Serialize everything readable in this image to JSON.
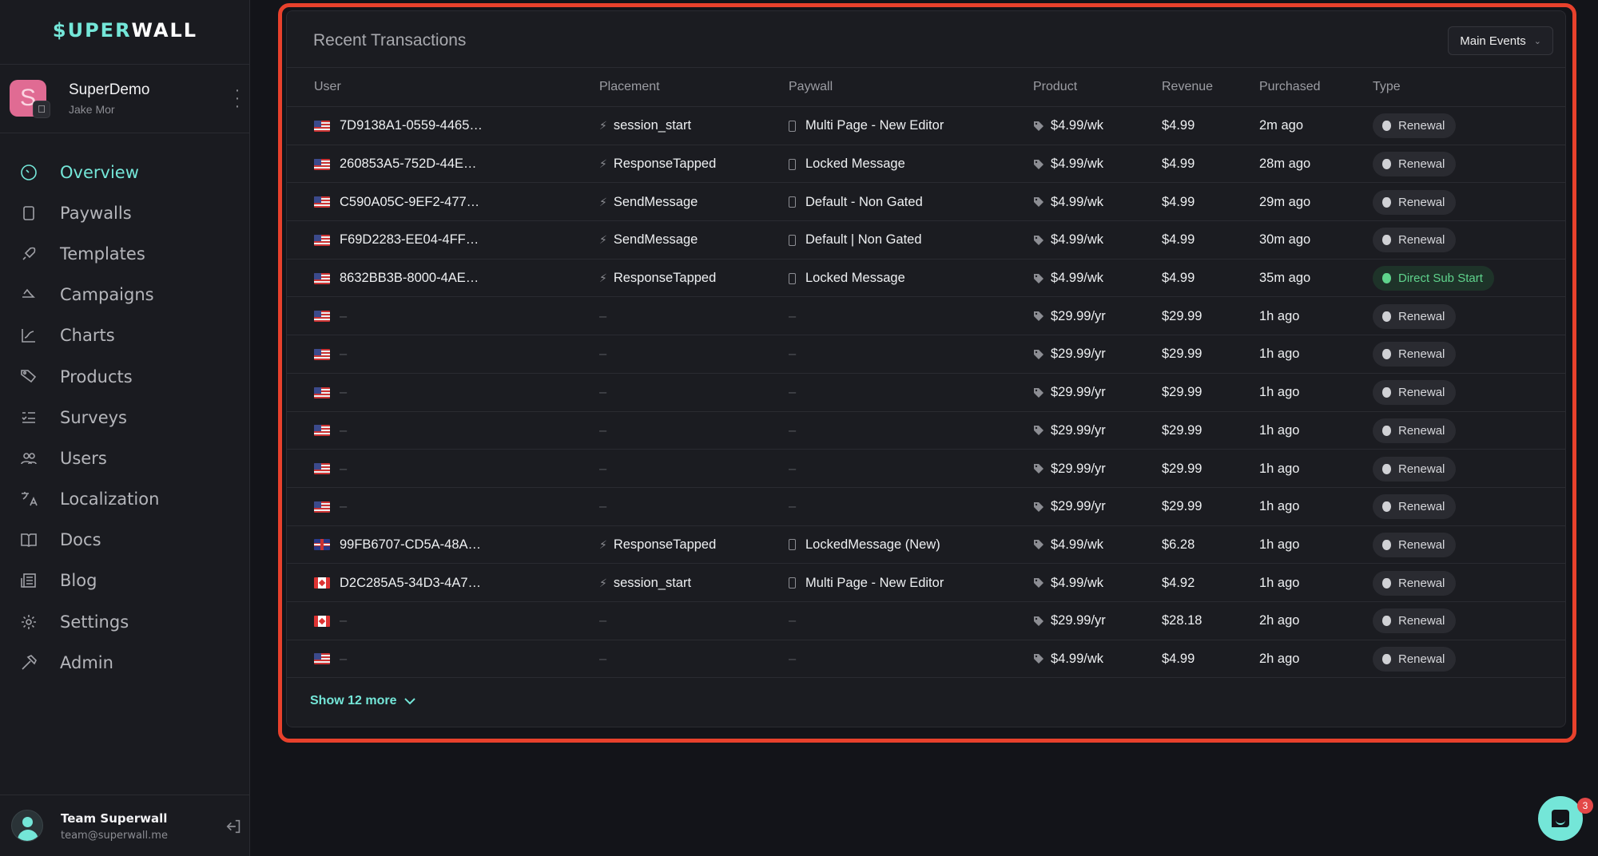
{
  "brand": {
    "logo_part1": "$UPER",
    "logo_part2": "WALL",
    "accent": "#74e6d8",
    "highlight": "#e8412c"
  },
  "app": {
    "name": "SuperDemo",
    "user": "Jake Mor",
    "icon_letter": "S",
    "platform_icon": "apple-icon"
  },
  "nav": {
    "items": [
      {
        "label": "Overview",
        "icon": "dashboard-icon",
        "active": true
      },
      {
        "label": "Paywalls",
        "icon": "phone-icon"
      },
      {
        "label": "Templates",
        "icon": "rocket-icon"
      },
      {
        "label": "Campaigns",
        "icon": "campaign-icon"
      },
      {
        "label": "Charts",
        "icon": "chart-icon"
      },
      {
        "label": "Products",
        "icon": "tag-icon"
      },
      {
        "label": "Surveys",
        "icon": "checklist-icon"
      },
      {
        "label": "Users",
        "icon": "users-icon"
      },
      {
        "label": "Localization",
        "icon": "translate-icon"
      },
      {
        "label": "Docs",
        "icon": "book-icon"
      },
      {
        "label": "Blog",
        "icon": "newspaper-icon"
      },
      {
        "label": "Settings",
        "icon": "gear-icon"
      },
      {
        "label": "Admin",
        "icon": "hammer-icon"
      }
    ]
  },
  "footer": {
    "team": "Team Superwall",
    "email": "team@superwall.me"
  },
  "transactions": {
    "title": "Recent Transactions",
    "filter": "Main Events",
    "columns": [
      "User",
      "Placement",
      "Paywall",
      "Product",
      "Revenue",
      "Purchased",
      "Type"
    ],
    "rows": [
      {
        "flag": "us",
        "user": "7D9138A1-0559-4465…",
        "placement": "session_start",
        "paywall": "Multi Page - New Editor",
        "product": "$4.99/wk",
        "revenue": "$4.99",
        "purchased": "2m ago",
        "type": "Renewal"
      },
      {
        "flag": "us",
        "user": "260853A5-752D-44E…",
        "placement": "ResponseTapped",
        "paywall": "Locked Message",
        "product": "$4.99/wk",
        "revenue": "$4.99",
        "purchased": "28m ago",
        "type": "Renewal"
      },
      {
        "flag": "us",
        "user": "C590A05C-9EF2-477…",
        "placement": "SendMessage",
        "paywall": "Default - Non Gated",
        "product": "$4.99/wk",
        "revenue": "$4.99",
        "purchased": "29m ago",
        "type": "Renewal"
      },
      {
        "flag": "us",
        "user": "F69D2283-EE04-4FF…",
        "placement": "SendMessage",
        "paywall": "Default | Non Gated",
        "product": "$4.99/wk",
        "revenue": "$4.99",
        "purchased": "30m ago",
        "type": "Renewal"
      },
      {
        "flag": "us",
        "user": "8632BB3B-8000-4AE…",
        "placement": "ResponseTapped",
        "paywall": "Locked Message",
        "product": "$4.99/wk",
        "revenue": "$4.99",
        "purchased": "35m ago",
        "type": "Direct Sub Start"
      },
      {
        "flag": "us",
        "user": "–",
        "placement": "–",
        "paywall": "–",
        "product": "$29.99/yr",
        "revenue": "$29.99",
        "purchased": "1h ago",
        "type": "Renewal"
      },
      {
        "flag": "us",
        "user": "–",
        "placement": "–",
        "paywall": "–",
        "product": "$29.99/yr",
        "revenue": "$29.99",
        "purchased": "1h ago",
        "type": "Renewal"
      },
      {
        "flag": "us",
        "user": "–",
        "placement": "–",
        "paywall": "–",
        "product": "$29.99/yr",
        "revenue": "$29.99",
        "purchased": "1h ago",
        "type": "Renewal"
      },
      {
        "flag": "us",
        "user": "–",
        "placement": "–",
        "paywall": "–",
        "product": "$29.99/yr",
        "revenue": "$29.99",
        "purchased": "1h ago",
        "type": "Renewal"
      },
      {
        "flag": "us",
        "user": "–",
        "placement": "–",
        "paywall": "–",
        "product": "$29.99/yr",
        "revenue": "$29.99",
        "purchased": "1h ago",
        "type": "Renewal"
      },
      {
        "flag": "us",
        "user": "–",
        "placement": "–",
        "paywall": "–",
        "product": "$29.99/yr",
        "revenue": "$29.99",
        "purchased": "1h ago",
        "type": "Renewal"
      },
      {
        "flag": "gb",
        "user": "99FB6707-CD5A-48A…",
        "placement": "ResponseTapped",
        "paywall": "LockedMessage (New)",
        "product": "$4.99/wk",
        "revenue": "$6.28",
        "purchased": "1h ago",
        "type": "Renewal"
      },
      {
        "flag": "ca",
        "user": "D2C285A5-34D3-4A7…",
        "placement": "session_start",
        "paywall": "Multi Page - New Editor",
        "product": "$4.99/wk",
        "revenue": "$4.92",
        "purchased": "1h ago",
        "type": "Renewal"
      },
      {
        "flag": "ca",
        "user": "–",
        "placement": "–",
        "paywall": "–",
        "product": "$29.99/yr",
        "revenue": "$28.18",
        "purchased": "2h ago",
        "type": "Renewal"
      },
      {
        "flag": "us",
        "user": "–",
        "placement": "–",
        "paywall": "–",
        "product": "$4.99/wk",
        "revenue": "$4.99",
        "purchased": "2h ago",
        "type": "Renewal"
      }
    ],
    "show_more": "Show 12 more"
  },
  "chat": {
    "unread": "3"
  }
}
